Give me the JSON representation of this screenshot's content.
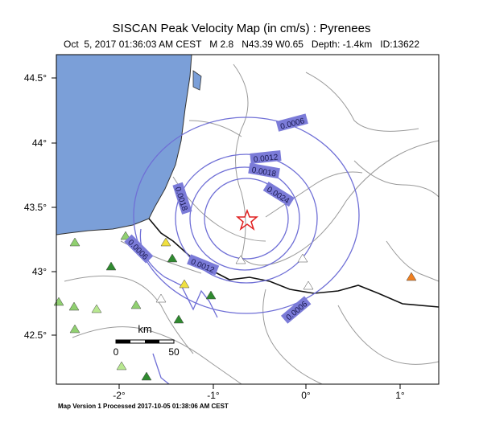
{
  "header": {
    "title": "SISCAN Peak Velocity Map (in cm/s) : Pyrenees",
    "subtitle": "Oct  5, 2017 01:36:03 AM CEST   M 2.8   N43.39 W0.65   Depth: -1.4km   ID:13622"
  },
  "map": {
    "latitude_labels": [
      "44.5°",
      "44°",
      "43.5°",
      "43°",
      "42.5°"
    ],
    "longitude_labels": [
      "-2°",
      "-1°",
      "0°",
      "1°"
    ],
    "contour_labels": [
      "0.0006",
      "0.0012",
      "0.0018",
      "0.0024",
      "0.0018",
      "0.0006",
      "0.0012",
      "0.0006"
    ],
    "scale_bar": {
      "unit": "km",
      "labels": [
        "0",
        "50"
      ]
    }
  },
  "footer": "Map Version 1 Processed 2017-10-05 01:38:06 AM CEST"
}
